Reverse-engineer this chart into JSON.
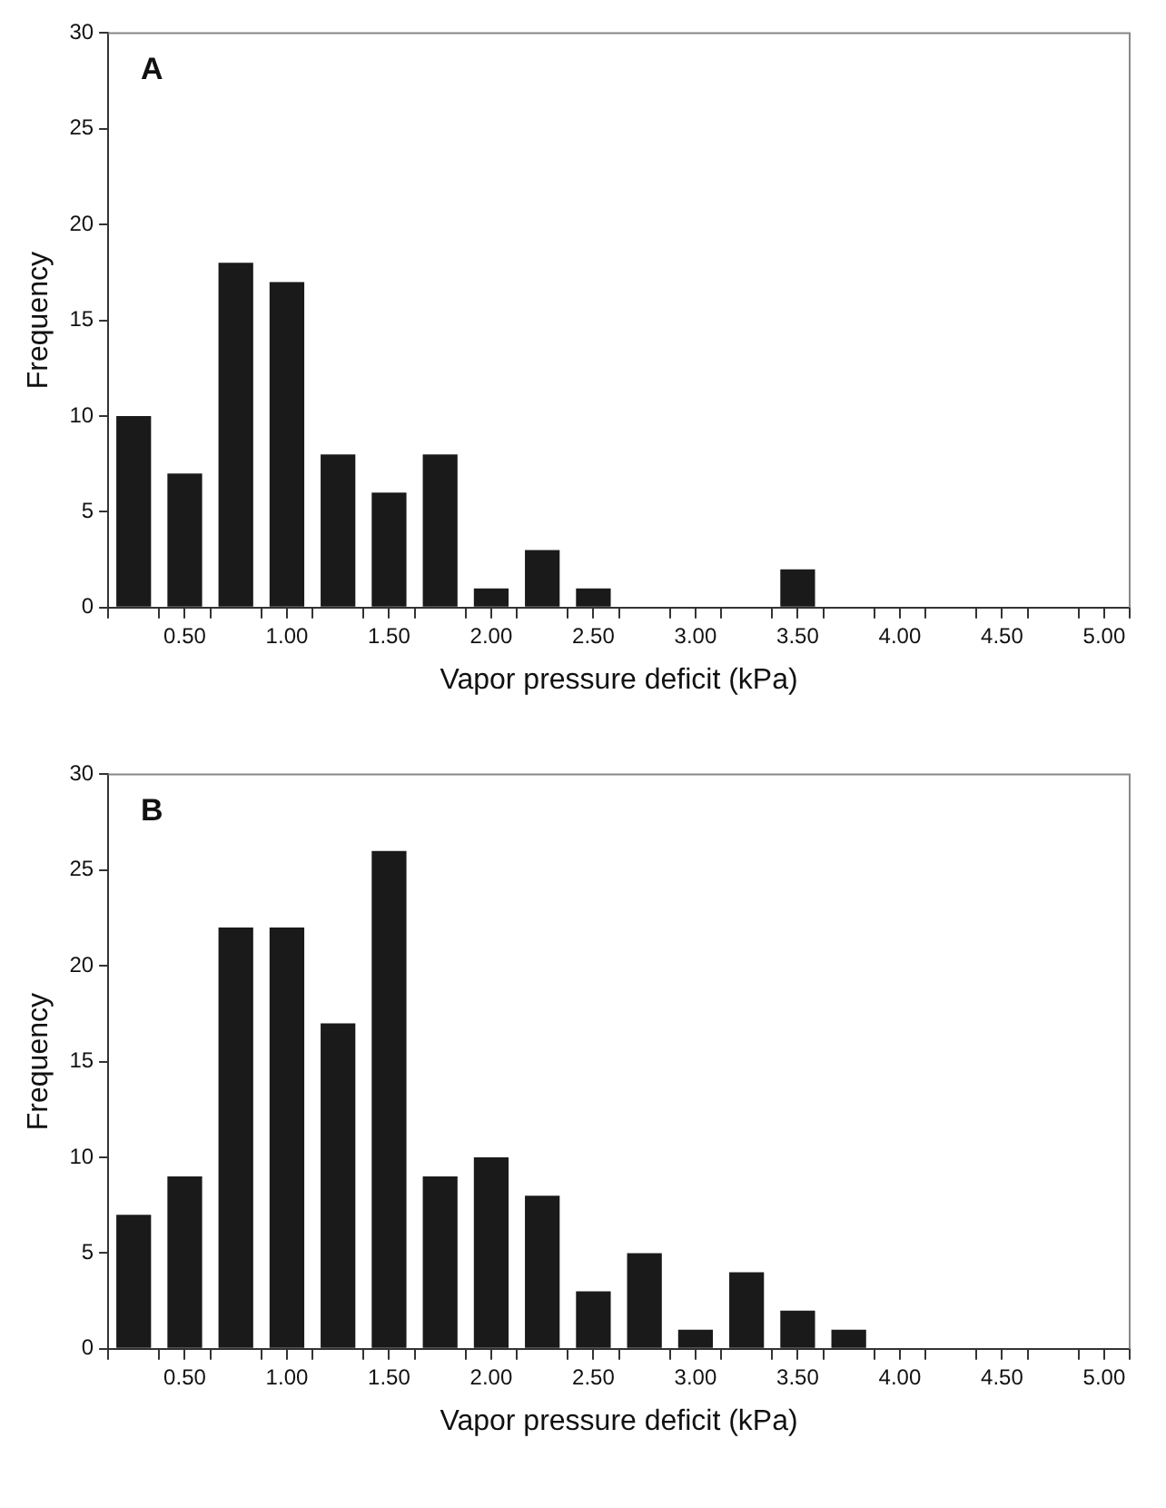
{
  "chart_data": [
    {
      "type": "histogram",
      "annotations": [
        "A"
      ],
      "xlabel": "Vapor pressure deficit (kPa)",
      "ylabel": "Frequency",
      "color": "#1a1a1a",
      "bins": [
        0.125,
        0.375,
        0.625,
        0.875,
        1.125,
        1.375,
        1.625,
        1.875,
        2.125,
        2.375,
        2.625,
        2.875,
        3.125,
        3.375,
        3.625,
        3.875,
        4.125,
        4.375,
        4.625,
        4.875,
        5.125
      ],
      "values": [
        10,
        7,
        18,
        17,
        8,
        6,
        8,
        1,
        3,
        1,
        0,
        0,
        0,
        2,
        0,
        0,
        0,
        0,
        0,
        0
      ],
      "xlim": [
        0.125,
        5.125
      ],
      "xticks": [
        {
          "value": 0.125,
          "label": null
        },
        {
          "value": 0.375,
          "label": null
        },
        {
          "value": 0.5,
          "label": "0.50"
        },
        {
          "value": 0.625,
          "label": null
        },
        {
          "value": 0.875,
          "label": null
        },
        {
          "value": 1.0,
          "label": "1.00"
        },
        {
          "value": 1.125,
          "label": null
        },
        {
          "value": 1.375,
          "label": null
        },
        {
          "value": 1.5,
          "label": "1.50"
        },
        {
          "value": 1.625,
          "label": null
        },
        {
          "value": 1.875,
          "label": null
        },
        {
          "value": 2.0,
          "label": "2.00"
        },
        {
          "value": 2.125,
          "label": null
        },
        {
          "value": 2.375,
          "label": null
        },
        {
          "value": 2.5,
          "label": "2.50"
        },
        {
          "value": 2.625,
          "label": null
        },
        {
          "value": 2.875,
          "label": null
        },
        {
          "value": 3.0,
          "label": "3.00"
        },
        {
          "value": 3.125,
          "label": null
        },
        {
          "value": 3.375,
          "label": null
        },
        {
          "value": 3.5,
          "label": "3.50"
        },
        {
          "value": 3.625,
          "label": null
        },
        {
          "value": 3.875,
          "label": null
        },
        {
          "value": 4.0,
          "label": "4.00"
        },
        {
          "value": 4.125,
          "label": null
        },
        {
          "value": 4.375,
          "label": null
        },
        {
          "value": 4.5,
          "label": "4.50"
        },
        {
          "value": 4.625,
          "label": null
        },
        {
          "value": 4.875,
          "label": null
        },
        {
          "value": 5.0,
          "label": "5.00"
        },
        {
          "value": 5.125,
          "label": null
        }
      ],
      "ylim": [
        0,
        30
      ],
      "yticks": [
        0,
        5,
        10,
        15,
        20,
        25,
        30
      ],
      "grid": false,
      "legend": false
    },
    {
      "type": "histogram",
      "annotations": [
        "B"
      ],
      "xlabel": "Vapor pressure deficit (kPa)",
      "ylabel": "Frequency",
      "color": "#1a1a1a",
      "bins": [
        0.125,
        0.375,
        0.625,
        0.875,
        1.125,
        1.375,
        1.625,
        1.875,
        2.125,
        2.375,
        2.625,
        2.875,
        3.125,
        3.375,
        3.625,
        3.875,
        4.125,
        4.375,
        4.625,
        4.875,
        5.125
      ],
      "values": [
        7,
        9,
        22,
        22,
        17,
        26,
        9,
        10,
        8,
        3,
        5,
        1,
        4,
        2,
        1,
        0,
        0,
        0,
        0,
        0
      ],
      "xlim": [
        0.125,
        5.125
      ],
      "xticks": [
        {
          "value": 0.125,
          "label": null
        },
        {
          "value": 0.375,
          "label": null
        },
        {
          "value": 0.5,
          "label": "0.50"
        },
        {
          "value": 0.625,
          "label": null
        },
        {
          "value": 0.875,
          "label": null
        },
        {
          "value": 1.0,
          "label": "1.00"
        },
        {
          "value": 1.125,
          "label": null
        },
        {
          "value": 1.375,
          "label": null
        },
        {
          "value": 1.5,
          "label": "1.50"
        },
        {
          "value": 1.625,
          "label": null
        },
        {
          "value": 1.875,
          "label": null
        },
        {
          "value": 2.0,
          "label": "2.00"
        },
        {
          "value": 2.125,
          "label": null
        },
        {
          "value": 2.375,
          "label": null
        },
        {
          "value": 2.5,
          "label": "2.50"
        },
        {
          "value": 2.625,
          "label": null
        },
        {
          "value": 2.875,
          "label": null
        },
        {
          "value": 3.0,
          "label": "3.00"
        },
        {
          "value": 3.125,
          "label": null
        },
        {
          "value": 3.375,
          "label": null
        },
        {
          "value": 3.5,
          "label": "3.50"
        },
        {
          "value": 3.625,
          "label": null
        },
        {
          "value": 3.875,
          "label": null
        },
        {
          "value": 4.0,
          "label": "4.00"
        },
        {
          "value": 4.125,
          "label": null
        },
        {
          "value": 4.375,
          "label": null
        },
        {
          "value": 4.5,
          "label": "4.50"
        },
        {
          "value": 4.625,
          "label": null
        },
        {
          "value": 4.875,
          "label": null
        },
        {
          "value": 5.0,
          "label": "5.00"
        },
        {
          "value": 5.125,
          "label": null
        }
      ],
      "ylim": [
        0,
        30
      ],
      "yticks": [
        0,
        5,
        10,
        15,
        20,
        25,
        30
      ],
      "grid": false,
      "legend": false
    }
  ]
}
